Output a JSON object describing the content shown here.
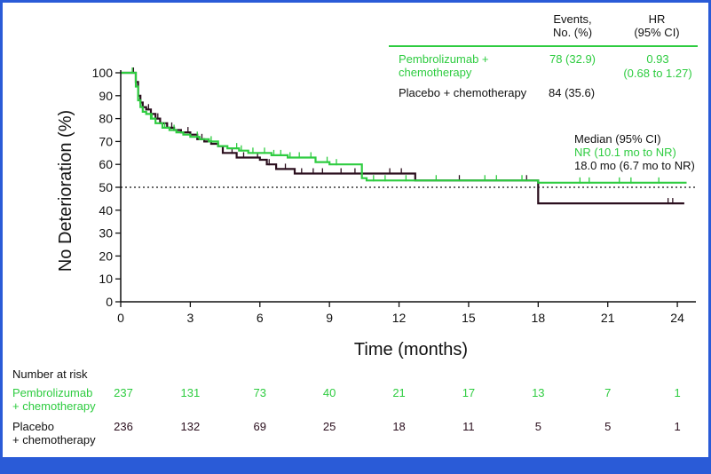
{
  "chart_data": {
    "type": "line",
    "xlabel": "Time (months)",
    "ylabel": "No Deterioration (%)",
    "xlim": [
      0,
      24.8
    ],
    "ylim": [
      0,
      100
    ],
    "xticks": [
      0,
      3,
      6,
      9,
      12,
      15,
      18,
      21,
      24
    ],
    "yticks": [
      0,
      10,
      20,
      30,
      40,
      50,
      60,
      70,
      80,
      90,
      100
    ],
    "reference_line": 50,
    "table_header": {
      "events": "Events,\nNo. (%)",
      "hr": "HR\n(95% CI)"
    },
    "median_title": "Median (95% CI)",
    "risk_title": "Number at risk",
    "series": [
      {
        "name": "Pembrolizumab + chemotherapy",
        "risk_label": "Pembrolizumab\n+ chemotherapy",
        "color": "#2ecc40",
        "events": "78 (32.9)",
        "hr": "0.93",
        "hr_ci": "(0.68 to 1.27)",
        "median": "NR (10.1 mo to NR)",
        "at_risk": [
          237,
          131,
          73,
          40,
          21,
          17,
          13,
          7,
          1
        ],
        "x": [
          0,
          0.65,
          0.75,
          0.85,
          0.95,
          1.1,
          1.3,
          1.5,
          1.8,
          2.1,
          2.4,
          2.7,
          3.0,
          3.4,
          3.8,
          4.2,
          4.6,
          5.1,
          5.5,
          6.0,
          6.5,
          7.2,
          8.0,
          8.4,
          9.0,
          9.6,
          10.4,
          10.6,
          12.6,
          18.0,
          24.4
        ],
        "y": [
          100,
          94,
          88,
          85,
          83,
          82,
          80,
          78,
          76,
          75,
          74,
          73,
          72,
          71,
          70,
          68,
          67,
          66,
          65,
          65,
          64,
          63,
          63,
          61,
          60,
          60,
          54,
          53,
          53,
          52,
          52
        ],
        "censor_x": [
          0.5,
          1.35,
          1.9,
          2.3,
          3.3,
          3.9,
          5.0,
          5.2,
          5.7,
          6.2,
          6.6,
          6.9,
          7.3,
          7.7,
          8.2,
          8.9,
          9.3,
          10.9,
          11.4,
          12.3,
          13.6,
          15.7,
          16.2,
          17.3,
          19.8,
          20.2,
          21.5,
          22.0,
          23.2
        ]
      },
      {
        "name": "Placebo + chemotherapy",
        "risk_label": "Placebo\n+ chemotherapy",
        "color": "#2b0f1e",
        "events": "84 (35.6)",
        "hr": "",
        "hr_ci": "",
        "median": "18.0 mo (6.7 mo to NR)",
        "at_risk": [
          236,
          132,
          69,
          25,
          18,
          11,
          5,
          5,
          1
        ],
        "x": [
          0,
          0.65,
          0.75,
          0.85,
          0.95,
          1.1,
          1.3,
          1.5,
          1.7,
          2.0,
          2.3,
          2.6,
          3.0,
          3.3,
          3.6,
          3.9,
          4.2,
          4.4,
          5.0,
          5.6,
          6.0,
          6.3,
          6.7,
          7.5,
          8.5,
          10.5,
          12.7,
          18.0,
          24.3
        ],
        "y": [
          100,
          96,
          90,
          87,
          85,
          84,
          82,
          80,
          78,
          76,
          75,
          74,
          73,
          71,
          70,
          69,
          68,
          65,
          63,
          63,
          62,
          60,
          58,
          56,
          56,
          56,
          53,
          43,
          43
        ],
        "censor_x": [
          0.55,
          1.2,
          1.6,
          2.2,
          2.9,
          3.5,
          4.8,
          5.3,
          5.9,
          6.4,
          7.1,
          7.8,
          8.3,
          8.7,
          9.5,
          10.1,
          11.6,
          12.1,
          14.6,
          17.5,
          23.6,
          23.8
        ]
      }
    ]
  }
}
